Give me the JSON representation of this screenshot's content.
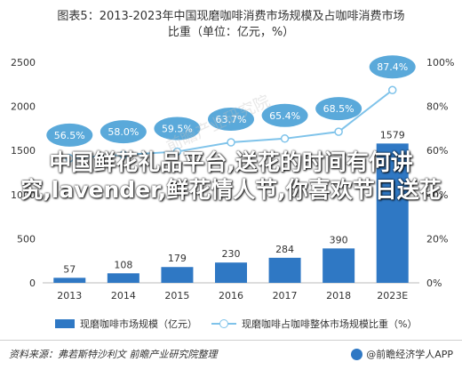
{
  "title_line1": "图表5：2013-2023年中国现磨咖啡消费市场规模及占咖啡消费市场",
  "title_line2": "比重（单位：亿元，%）",
  "chart_data": {
    "type": "bar",
    "categories": [
      "2013",
      "2014",
      "2015",
      "2016",
      "2017",
      "2018",
      "2023E"
    ],
    "series": [
      {
        "name": "现磨咖啡市场规模（亿元）",
        "type": "bar",
        "axis": "left",
        "values": [
          57,
          108,
          179,
          230,
          284,
          390,
          1579
        ],
        "color": "#2f78c4"
      },
      {
        "name": "现磨咖啡占咖啡整体市场规模比重（%）",
        "type": "line",
        "axis": "right",
        "values": [
          56.5,
          58.0,
          59.5,
          63.7,
          65.4,
          68.5,
          87.4
        ],
        "color": "#7fc3ea"
      }
    ],
    "y_left": {
      "range": [
        0,
        2500
      ],
      "ticks": [
        "0",
        "500",
        "1000",
        "1500",
        "2000",
        "2500"
      ]
    },
    "y_right": {
      "range": [
        0,
        100
      ],
      "ticks": [
        "0%",
        "20%",
        "40%",
        "60%",
        "80%",
        "100%"
      ]
    },
    "line_labels": [
      "56.5%",
      "58.0%",
      "59.5%",
      "63.7%",
      "65.4%",
      "68.5%",
      "87.4%"
    ],
    "bar_labels": [
      "57",
      "108",
      "179",
      "230",
      "284",
      "390",
      "1579"
    ],
    "grid": false,
    "legend_position": "bottom"
  },
  "legend": {
    "bar_label": "现磨咖啡市场规模（亿元）",
    "line_label": "现磨咖啡占咖啡整体市场规模比重（%）"
  },
  "footer": {
    "source": "资料来源：弗若斯特沙利文  前瞻产业研究院整理",
    "brand": "@前瞻经济学人APP"
  },
  "overlay_text": "中国鲜花礼品平台,送花的时间有何讲究,lavender,鲜花情人节,你喜欢节日送花",
  "watermark": "前瞻产业研究院",
  "colors": {
    "bar": "#2f78c4",
    "line": "#7fc3ea",
    "label_fill": "#5aa9da"
  }
}
